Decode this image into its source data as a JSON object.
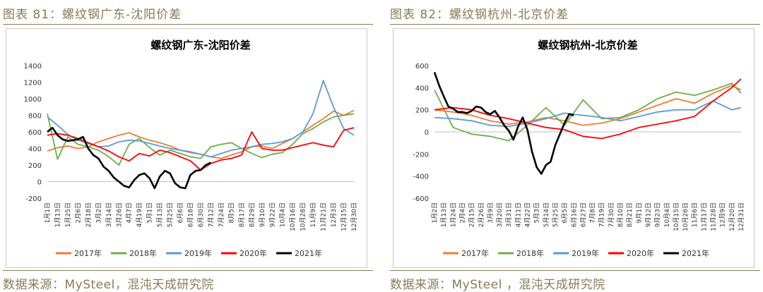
{
  "left": {
    "figure_title": "图表 81：螺纹钢广东-沈阳价差",
    "source": "数据来源：MySteel，混沌天成研究院"
  },
  "right": {
    "figure_title": "图表 82：螺纹钢杭州-北京价差",
    "source": "数据来源：MySteel ，混沌天成研究院"
  },
  "chart_data": [
    {
      "type": "line",
      "title": "螺纹钢广东-沈阳价差",
      "xlabel": "",
      "ylabel": "",
      "ylim": [
        -200,
        1400
      ],
      "yticks": [
        -200,
        0,
        200,
        400,
        600,
        800,
        1000,
        1200,
        1400
      ],
      "xticks": [
        "1月1日",
        "1月13日",
        "1月25日",
        "2月6日",
        "2月18日",
        "3月2日",
        "3月14日",
        "3月26日",
        "4月7日",
        "4月19日",
        "5月1日",
        "5月13日",
        "5月25日",
        "6月6日",
        "6月18日",
        "6月30日",
        "7月12日",
        "7月24日",
        "8月5日",
        "8月17日",
        "8月29日",
        "9月10日",
        "9月22日",
        "10月4日",
        "10月16日",
        "10月28日",
        "11月9日",
        "11月21日",
        "12月3日",
        "12月15日",
        "12月30日"
      ],
      "grid": false,
      "legend": "bottom",
      "series": [
        {
          "name": "2017年",
          "color": "#ed7d31",
          "x": [
            0,
            1,
            2,
            3,
            4,
            5,
            6,
            7,
            8,
            9,
            10,
            11,
            12,
            13,
            14,
            15,
            16,
            17,
            18,
            19,
            20,
            21,
            22,
            23,
            24,
            25,
            26,
            27,
            28,
            29,
            30
          ],
          "values": [
            370,
            410,
            430,
            400,
            420,
            480,
            520,
            560,
            590,
            540,
            500,
            470,
            430,
            380,
            350,
            330,
            300,
            280,
            320,
            360,
            420,
            430,
            400,
            460,
            520,
            600,
            680,
            760,
            850,
            800,
            860
          ]
        },
        {
          "name": "2018年",
          "color": "#70ad47",
          "x": [
            0,
            1,
            2,
            3,
            4,
            5,
            6,
            7,
            8,
            9,
            10,
            11,
            12,
            13,
            14,
            15,
            16,
            17,
            18,
            19,
            20,
            21,
            22,
            23,
            24,
            25,
            26,
            27,
            28,
            29,
            30
          ],
          "values": [
            820,
            270,
            540,
            450,
            420,
            380,
            300,
            200,
            450,
            520,
            410,
            320,
            380,
            340,
            300,
            280,
            420,
            450,
            470,
            400,
            340,
            290,
            330,
            350,
            450,
            580,
            640,
            720,
            780,
            800,
            820
          ]
        },
        {
          "name": "2019年",
          "color": "#5b9bd5",
          "x": [
            0,
            1,
            2,
            3,
            4,
            5,
            6,
            7,
            8,
            9,
            10,
            11,
            12,
            13,
            14,
            15,
            16,
            17,
            18,
            19,
            20,
            21,
            22,
            23,
            24,
            25,
            26,
            27,
            28,
            29,
            30
          ],
          "values": [
            780,
            680,
            570,
            500,
            460,
            420,
            430,
            480,
            500,
            490,
            460,
            430,
            400,
            380,
            360,
            330,
            300,
            340,
            380,
            400,
            420,
            450,
            460,
            480,
            520,
            600,
            820,
            1220,
            900,
            640,
            560
          ]
        },
        {
          "name": "2020年",
          "color": "#ff0000",
          "x": [
            0,
            1,
            2,
            3,
            4,
            5,
            6,
            7,
            8,
            9,
            10,
            11,
            12,
            13,
            14,
            15,
            16,
            17,
            18,
            19,
            20,
            21,
            22,
            23,
            24,
            25,
            26,
            27,
            28,
            29,
            30
          ],
          "values": [
            560,
            580,
            560,
            520,
            470,
            420,
            370,
            300,
            250,
            340,
            310,
            380,
            350,
            300,
            250,
            140,
            220,
            260,
            280,
            320,
            600,
            400,
            380,
            380,
            410,
            440,
            470,
            440,
            420,
            620,
            650
          ]
        },
        {
          "name": "2021年",
          "color": "#000000",
          "x": [
            0,
            0.5,
            1,
            1.5,
            2,
            2.5,
            3,
            3.5,
            4,
            4.5,
            5,
            5.5,
            6,
            6.5,
            7,
            7.5,
            8,
            8.5,
            9,
            9.5,
            10,
            10.5,
            11,
            11.5,
            12,
            12.5,
            13,
            13.5,
            14,
            14.5,
            15,
            15.5,
            16
          ],
          "values": [
            600,
            650,
            560,
            510,
            490,
            500,
            510,
            540,
            400,
            320,
            280,
            180,
            130,
            50,
            0,
            -50,
            -70,
            20,
            80,
            100,
            40,
            -80,
            60,
            130,
            100,
            -20,
            -70,
            -80,
            80,
            130,
            140,
            200,
            230
          ]
        }
      ]
    },
    {
      "type": "line",
      "title": "螺纹钢杭州-北京价差",
      "xlabel": "",
      "ylabel": "",
      "ylim": [
        -600,
        600
      ],
      "yticks": [
        -600,
        -400,
        -200,
        0,
        200,
        400,
        600
      ],
      "xticks": [
        "1月2日",
        "1月13日",
        "1月24日",
        "2月4日",
        "2月15日",
        "2月26日",
        "3月9日",
        "3月20日",
        "3月31日",
        "4月11日",
        "4月22日",
        "5月3日",
        "5月14日",
        "5月25日",
        "6月5日",
        "6月16日",
        "6月27日",
        "7月8日",
        "7月19日",
        "7月30日",
        "8月10日",
        "8月21日",
        "9月1日",
        "9月12日",
        "9月23日",
        "10月4日",
        "10月15日",
        "10月26日",
        "11月6日",
        "11月17日",
        "11月28日",
        "12月9日",
        "12月20日",
        "12月31日"
      ],
      "grid": false,
      "legend": "bottom",
      "series": [
        {
          "name": "2017年",
          "color": "#ed7d31",
          "x": [
            0,
            2,
            4,
            6,
            8,
            10,
            12,
            14,
            16,
            18,
            20,
            22,
            24,
            26,
            28,
            30,
            32,
            33
          ],
          "values": [
            200,
            180,
            150,
            100,
            70,
            90,
            130,
            100,
            60,
            80,
            120,
            180,
            240,
            300,
            260,
            350,
            420,
            380
          ]
        },
        {
          "name": "2018年",
          "color": "#70ad47",
          "x": [
            0,
            2,
            4,
            6,
            8,
            10,
            12,
            14,
            16,
            18,
            20,
            22,
            24,
            26,
            28,
            30,
            32,
            33
          ],
          "values": [
            380,
            40,
            -20,
            -40,
            -80,
            60,
            220,
            60,
            290,
            120,
            130,
            200,
            300,
            360,
            330,
            380,
            440,
            350
          ]
        },
        {
          "name": "2019年",
          "color": "#5b9bd5",
          "x": [
            0,
            2,
            4,
            6,
            8,
            10,
            12,
            14,
            16,
            18,
            20,
            22,
            24,
            26,
            28,
            30,
            32,
            33
          ],
          "values": [
            130,
            120,
            100,
            60,
            50,
            80,
            120,
            170,
            150,
            130,
            100,
            140,
            180,
            200,
            200,
            280,
            200,
            220
          ]
        },
        {
          "name": "2020年",
          "color": "#ff0000",
          "x": [
            0,
            2,
            4,
            6,
            8,
            10,
            12,
            14,
            16,
            18,
            20,
            22,
            24,
            26,
            28,
            30,
            32,
            33
          ],
          "values": [
            200,
            220,
            200,
            150,
            120,
            80,
            40,
            20,
            -40,
            -60,
            -20,
            40,
            70,
            100,
            140,
            280,
            400,
            480
          ]
        },
        {
          "name": "2021年",
          "color": "#000000",
          "x": [
            0,
            0.5,
            1,
            1.5,
            2,
            2.5,
            3,
            3.5,
            4,
            4.5,
            5,
            5.5,
            6,
            6.5,
            7,
            7.5,
            8,
            8.5,
            9,
            9.5,
            10,
            10.5,
            11,
            11.5,
            12,
            12.5,
            13,
            13.5,
            14,
            14.5,
            15
          ],
          "values": [
            540,
            420,
            320,
            230,
            210,
            180,
            180,
            170,
            190,
            230,
            220,
            180,
            160,
            190,
            130,
            60,
            10,
            -70,
            50,
            130,
            20,
            -180,
            -320,
            -380,
            -300,
            -270,
            -120,
            -20,
            80,
            160,
            150
          ]
        }
      ]
    }
  ]
}
